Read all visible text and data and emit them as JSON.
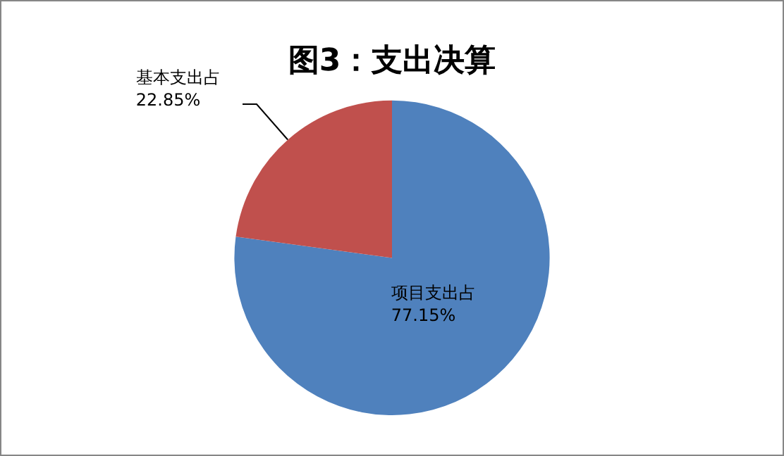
{
  "chart_data": {
    "type": "pie",
    "title": "图3：支出决算",
    "categories": [
      "项目支出占",
      "基本支出占"
    ],
    "values": [
      77.15,
      22.85
    ],
    "colors": [
      "#4f81bd",
      "#c0504d"
    ],
    "value_labels": [
      "77.15%",
      "22.85%"
    ],
    "legend": false
  }
}
